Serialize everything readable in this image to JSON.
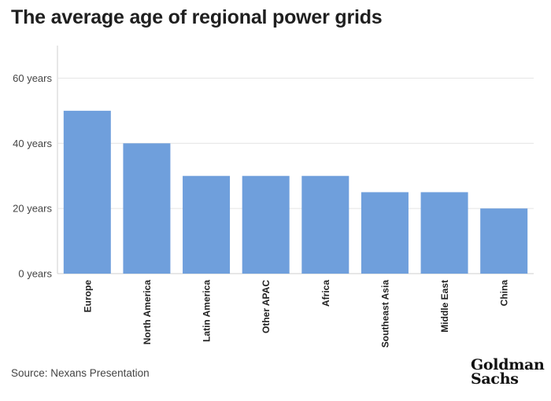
{
  "header": {
    "title": "The average age of regional power grids"
  },
  "footer": {
    "source": "Source: Nexans Presentation"
  },
  "logo": {
    "line1": "Goldman",
    "line2": "Sachs"
  },
  "colors": {
    "bar": "#6f9fdc",
    "grid": "#e4e4e4",
    "axis": "#cfcfcf",
    "text": "#222222"
  },
  "chart_data": {
    "type": "bar",
    "title": "The average age of regional power grids",
    "xlabel": "",
    "ylabel": "",
    "categories": [
      "Europe",
      "North America",
      "Latin America",
      "Other APAC",
      "Africa",
      "Southeast Asia",
      "Middle East",
      "China"
    ],
    "values": [
      50,
      40,
      30,
      30,
      30,
      25,
      25,
      20
    ],
    "ylim": [
      0,
      70
    ],
    "yticks": [
      {
        "value": 0,
        "label": "0 years"
      },
      {
        "value": 20,
        "label": "20 years"
      },
      {
        "value": 40,
        "label": "40 years"
      },
      {
        "value": 60,
        "label": "60 years"
      }
    ],
    "grid": true
  }
}
